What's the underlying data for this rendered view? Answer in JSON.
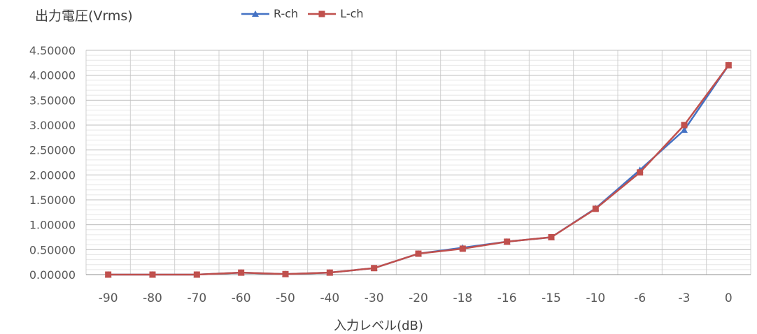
{
  "chart_data": {
    "type": "line",
    "title": "",
    "ylabel": "出力電圧(Vrms)",
    "xlabel": "入力レベル(dB)",
    "categories": [
      "-90",
      "-80",
      "-70",
      "-60",
      "-50",
      "-40",
      "-30",
      "-20",
      "-18",
      "-16",
      "-15",
      "-10",
      "-6",
      "-3",
      "0"
    ],
    "ylim": [
      0,
      4.5
    ],
    "yticks": [
      "0.00000",
      "0.50000",
      "1.00000",
      "1.50000",
      "2.00000",
      "2.50000",
      "3.00000",
      "3.50000",
      "4.00000",
      "4.50000"
    ],
    "grid": true,
    "legend_position": "top",
    "series": [
      {
        "name": "R-ch",
        "color": "#4472C4",
        "marker": "triangle",
        "values": [
          0.0,
          0.0,
          0.0,
          0.04,
          0.01,
          0.04,
          0.13,
          0.42,
          0.54,
          0.66,
          0.75,
          1.33,
          2.1,
          2.9,
          4.2
        ]
      },
      {
        "name": "L-ch",
        "color": "#C0504D",
        "marker": "square",
        "values": [
          0.0,
          0.0,
          0.0,
          0.04,
          0.01,
          0.04,
          0.13,
          0.42,
          0.52,
          0.66,
          0.75,
          1.32,
          2.05,
          3.0,
          4.2
        ]
      }
    ]
  }
}
